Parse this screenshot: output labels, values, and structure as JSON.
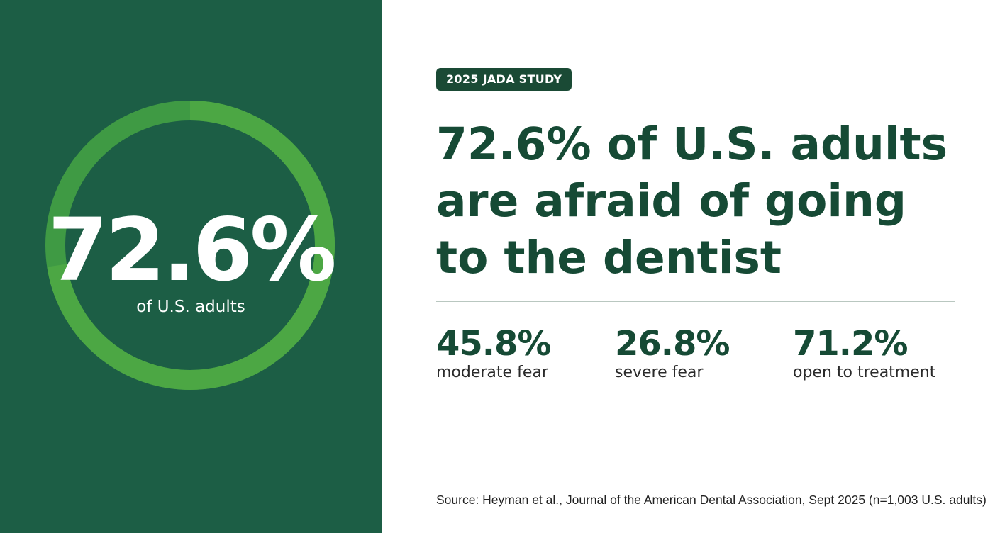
{
  "chart_data": {
    "type": "pie",
    "variant": "donut-progress",
    "value_percent": 72.6,
    "value_label": "72.6%",
    "caption": "of U.S. adults",
    "colors": {
      "panel_background": "#1c5e45",
      "ring_filled": "#4ca744",
      "ring_remaining": "#3f9a44"
    }
  },
  "badge": {
    "label": "2025 JADA STUDY"
  },
  "headline": {
    "line1": "72.6% of U.S. adults",
    "line2": "are afraid of going",
    "line3": "to the dentist"
  },
  "stats": [
    {
      "value": "45.8%",
      "label": "moderate fear"
    },
    {
      "value": "26.8%",
      "label": "severe fear"
    },
    {
      "value": "71.2%",
      "label": "open to treatment"
    }
  ],
  "source": "Source: Heyman et al., Journal of the American Dental Association, Sept 2025 (n=1,003 U.S. adults)",
  "colors": {
    "accent_dark": "#164a35",
    "badge_bg": "#1a4a35",
    "text_body": "#2a2a2a"
  }
}
